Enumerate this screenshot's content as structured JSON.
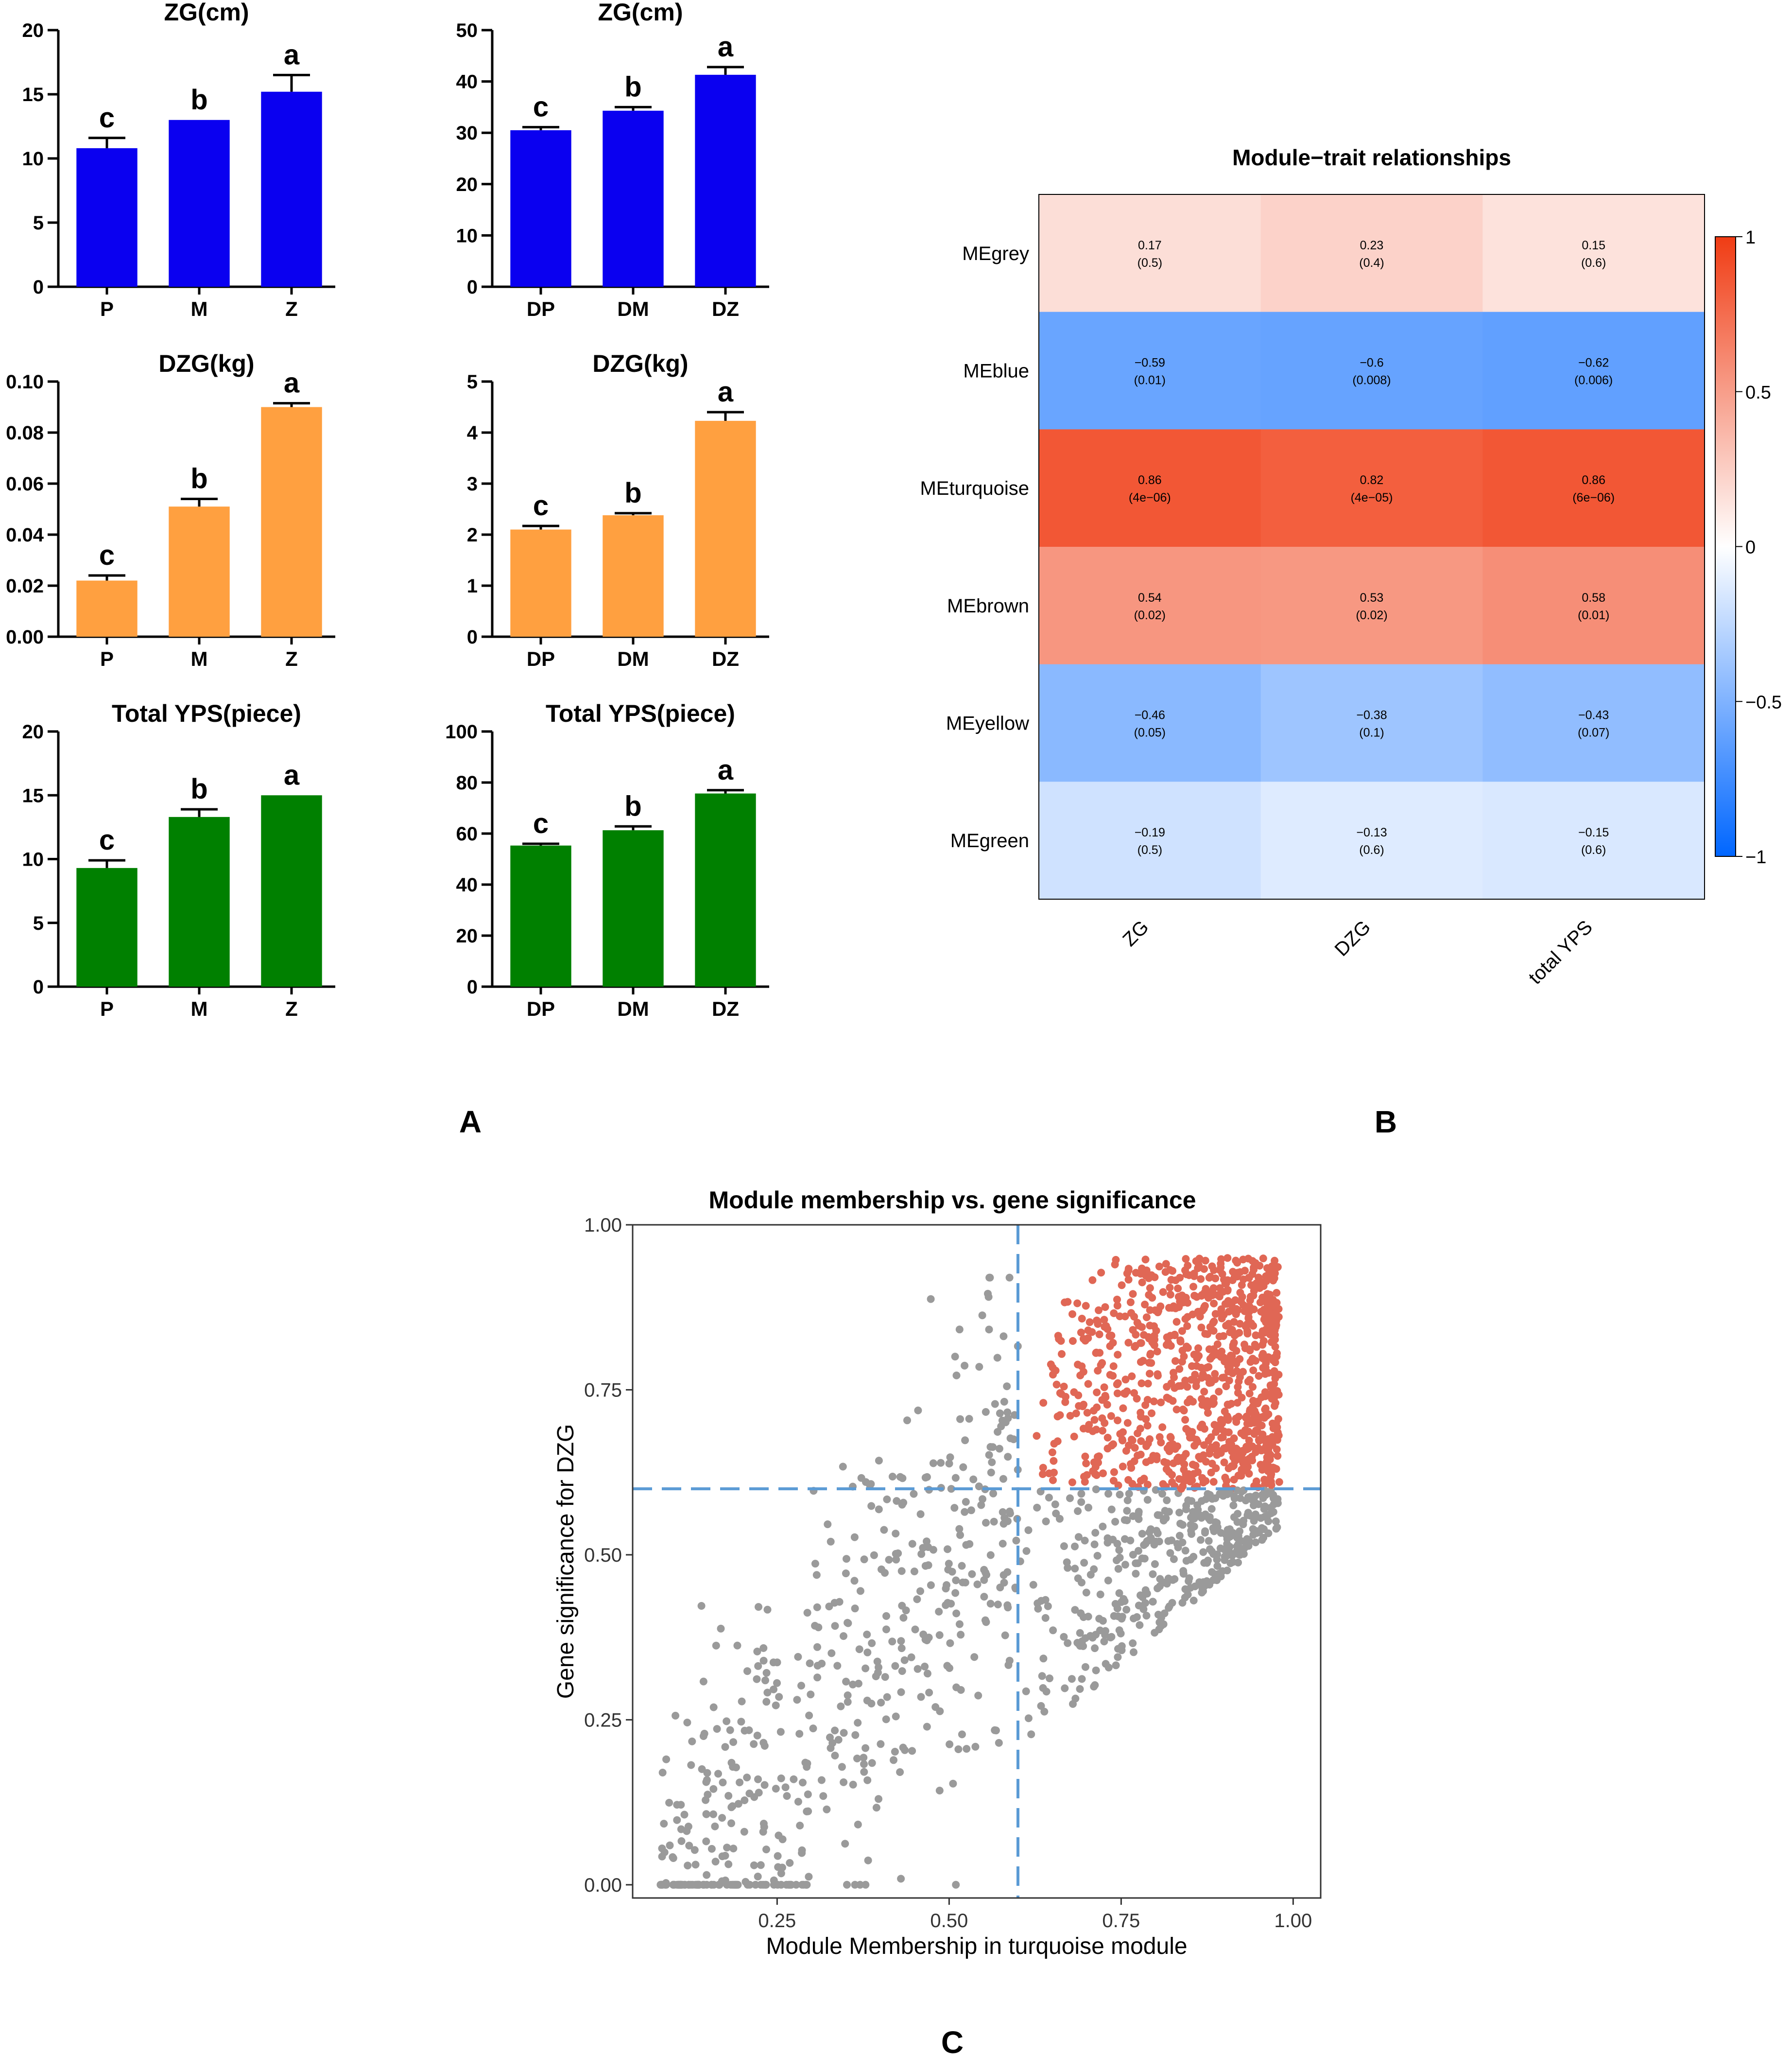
{
  "panel_labels": {
    "A": "A",
    "B": "B",
    "C": "C"
  },
  "chart_data": [
    {
      "id": "zg1",
      "type": "bar",
      "title": "ZG(cm)",
      "categories": [
        "P",
        "M",
        "Z"
      ],
      "values": [
        10.8,
        13.0,
        15.2
      ],
      "errors": [
        0.8,
        0.0,
        1.3
      ],
      "letters": [
        "c",
        "b",
        "a"
      ],
      "ylim": [
        0,
        20
      ],
      "yticks": [
        "0",
        "5",
        "10",
        "15",
        "20"
      ],
      "color": "#0a00f0"
    },
    {
      "id": "zg2",
      "type": "bar",
      "title": "ZG(cm)",
      "categories": [
        "DP",
        "DM",
        "DZ"
      ],
      "values": [
        30.5,
        34.3,
        41.3
      ],
      "errors": [
        0.6,
        0.7,
        1.5
      ],
      "letters": [
        "c",
        "b",
        "a"
      ],
      "ylim": [
        0,
        50
      ],
      "yticks": [
        "0",
        "10",
        "20",
        "30",
        "40",
        "50"
      ],
      "color": "#0a00f0"
    },
    {
      "id": "dzg1",
      "type": "bar",
      "title": "DZG(kg)",
      "categories": [
        "P",
        "M",
        "Z"
      ],
      "values": [
        0.022,
        0.051,
        0.09
      ],
      "errors": [
        0.002,
        0.003,
        0.0015
      ],
      "letters": [
        "c",
        "b",
        "a"
      ],
      "ylim": [
        0,
        0.1
      ],
      "yticks": [
        "0.00",
        "0.02",
        "0.04",
        "0.06",
        "0.08",
        "0.10"
      ],
      "color": "#ffa040"
    },
    {
      "id": "dzg2",
      "type": "bar",
      "title": "DZG(kg)",
      "categories": [
        "DP",
        "DM",
        "DZ"
      ],
      "values": [
        2.1,
        2.38,
        4.23
      ],
      "errors": [
        0.07,
        0.04,
        0.17
      ],
      "letters": [
        "c",
        "b",
        "a"
      ],
      "ylim": [
        0,
        5
      ],
      "yticks": [
        "0",
        "1",
        "2",
        "3",
        "4",
        "5"
      ],
      "color": "#ffa040"
    },
    {
      "id": "yps1",
      "type": "bar",
      "title": "Total YPS(piece)",
      "categories": [
        "P",
        "M",
        "Z"
      ],
      "values": [
        9.3,
        13.3,
        15.0
      ],
      "errors": [
        0.6,
        0.6,
        0.0
      ],
      "letters": [
        "c",
        "b",
        "a"
      ],
      "ylim": [
        0,
        20
      ],
      "yticks": [
        "0",
        "5",
        "10",
        "15",
        "20"
      ],
      "color": "#008000"
    },
    {
      "id": "yps2",
      "type": "bar",
      "title": "Total YPS(piece)",
      "categories": [
        "DP",
        "DM",
        "DZ"
      ],
      "values": [
        55.3,
        61.3,
        75.7
      ],
      "errors": [
        0.7,
        1.5,
        1.3
      ],
      "letters": [
        "c",
        "b",
        "a"
      ],
      "ylim": [
        0,
        100
      ],
      "yticks": [
        "0",
        "20",
        "40",
        "60",
        "80",
        "100"
      ],
      "color": "#008000"
    },
    {
      "id": "heatmap",
      "type": "heatmap",
      "title": "Module−trait relationships",
      "rows": [
        "MEgrey",
        "MEblue",
        "MEturquoise",
        "MEbrown",
        "MEyellow",
        "MEgreen"
      ],
      "columns": [
        "ZG",
        "DZG",
        "total YPS"
      ],
      "values": [
        [
          0.17,
          0.23,
          0.15
        ],
        [
          -0.59,
          -0.6,
          -0.62
        ],
        [
          0.86,
          0.82,
          0.86
        ],
        [
          0.54,
          0.53,
          0.58
        ],
        [
          -0.46,
          -0.38,
          -0.43
        ],
        [
          -0.19,
          -0.13,
          -0.15
        ]
      ],
      "cell_values": [
        [
          "0.17",
          "0.23",
          "0.15"
        ],
        [
          "−0.59",
          "−0.6",
          "−0.62"
        ],
        [
          "0.86",
          "0.82",
          "0.86"
        ],
        [
          "0.54",
          "0.53",
          "0.58"
        ],
        [
          "−0.46",
          "−0.38",
          "−0.43"
        ],
        [
          "−0.19",
          "−0.13",
          "−0.15"
        ]
      ],
      "pvalues": [
        [
          "(0.5)",
          "(0.4)",
          "(0.6)"
        ],
        [
          "(0.01)",
          "(0.008)",
          "(0.006)"
        ],
        [
          "(4e−06)",
          "(4e−05)",
          "(6e−06)"
        ],
        [
          "(0.02)",
          "(0.02)",
          "(0.01)"
        ],
        [
          "(0.05)",
          "(0.1)",
          "(0.07)"
        ],
        [
          "(0.5)",
          "(0.6)",
          "(0.6)"
        ]
      ],
      "colorbar": {
        "min": -1,
        "max": 1,
        "ticks": [
          "1",
          "0.5",
          "0",
          "−0.5",
          "−1"
        ],
        "low_color": "#0066ff",
        "mid_color": "#ffffff",
        "high_color": "#f03c14"
      }
    },
    {
      "id": "scatter",
      "type": "scatter",
      "title": "Module membership vs. gene significance",
      "xlabel": "Module Membership in turquoise module",
      "ylabel": "Gene significance for DZG",
      "xlim": [
        0.04,
        1.04
      ],
      "ylim": [
        -0.02,
        1.0
      ],
      "xticks": [
        "0.25",
        "0.50",
        "0.75",
        "1.00"
      ],
      "yticks": [
        "0.00",
        "0.25",
        "0.50",
        "0.75",
        "1.00"
      ],
      "threshold_x": 0.6,
      "threshold_y": 0.6,
      "highlight_color": "#e06755",
      "other_color": "#9a9a9a",
      "line_color": "#5b9bd5",
      "point_count_approx": 1800
    }
  ]
}
